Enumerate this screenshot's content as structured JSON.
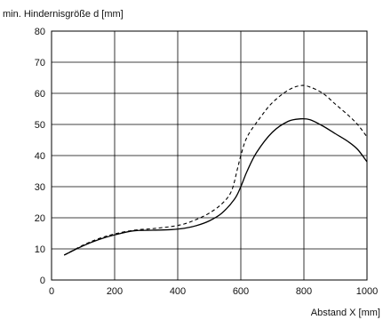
{
  "chart_data": {
    "type": "line",
    "title": "",
    "ylabel": "min. Hindernisgröße d [mm]",
    "xlabel": "Abstand X [mm]",
    "xlim": [
      0,
      1000
    ],
    "ylim": [
      0,
      80
    ],
    "x_ticks": [
      0,
      200,
      400,
      600,
      800,
      1000
    ],
    "y_ticks": [
      0,
      10,
      20,
      30,
      40,
      50,
      60,
      70,
      80
    ],
    "grid": true,
    "series": [
      {
        "style": "solid",
        "color": "#000000",
        "points": [
          [
            40,
            8
          ],
          [
            100,
            11
          ],
          [
            150,
            13
          ],
          [
            200,
            14.5
          ],
          [
            260,
            15.8
          ],
          [
            320,
            16
          ],
          [
            380,
            16.2
          ],
          [
            420,
            16.6
          ],
          [
            460,
            17.5
          ],
          [
            500,
            19
          ],
          [
            540,
            21.5
          ],
          [
            580,
            26
          ],
          [
            600,
            30
          ],
          [
            620,
            35
          ],
          [
            650,
            41
          ],
          [
            700,
            47.5
          ],
          [
            750,
            51
          ],
          [
            790,
            51.8
          ],
          [
            820,
            51.5
          ],
          [
            860,
            49.5
          ],
          [
            900,
            47
          ],
          [
            940,
            44.5
          ],
          [
            970,
            42
          ],
          [
            1000,
            38
          ]
        ]
      },
      {
        "style": "dashed",
        "color": "#000000",
        "points": [
          [
            40,
            8
          ],
          [
            100,
            11.2
          ],
          [
            150,
            13.3
          ],
          [
            200,
            14.8
          ],
          [
            260,
            16
          ],
          [
            320,
            16.5
          ],
          [
            380,
            17.2
          ],
          [
            420,
            18
          ],
          [
            460,
            19.5
          ],
          [
            500,
            21.5
          ],
          [
            540,
            24.5
          ],
          [
            570,
            28.5
          ],
          [
            590,
            36
          ],
          [
            600,
            40
          ],
          [
            620,
            46
          ],
          [
            660,
            52
          ],
          [
            700,
            57
          ],
          [
            750,
            61
          ],
          [
            790,
            62.5
          ],
          [
            820,
            62
          ],
          [
            860,
            60
          ],
          [
            900,
            56.5
          ],
          [
            940,
            53
          ],
          [
            970,
            50
          ],
          [
            1000,
            46
          ]
        ]
      }
    ]
  }
}
